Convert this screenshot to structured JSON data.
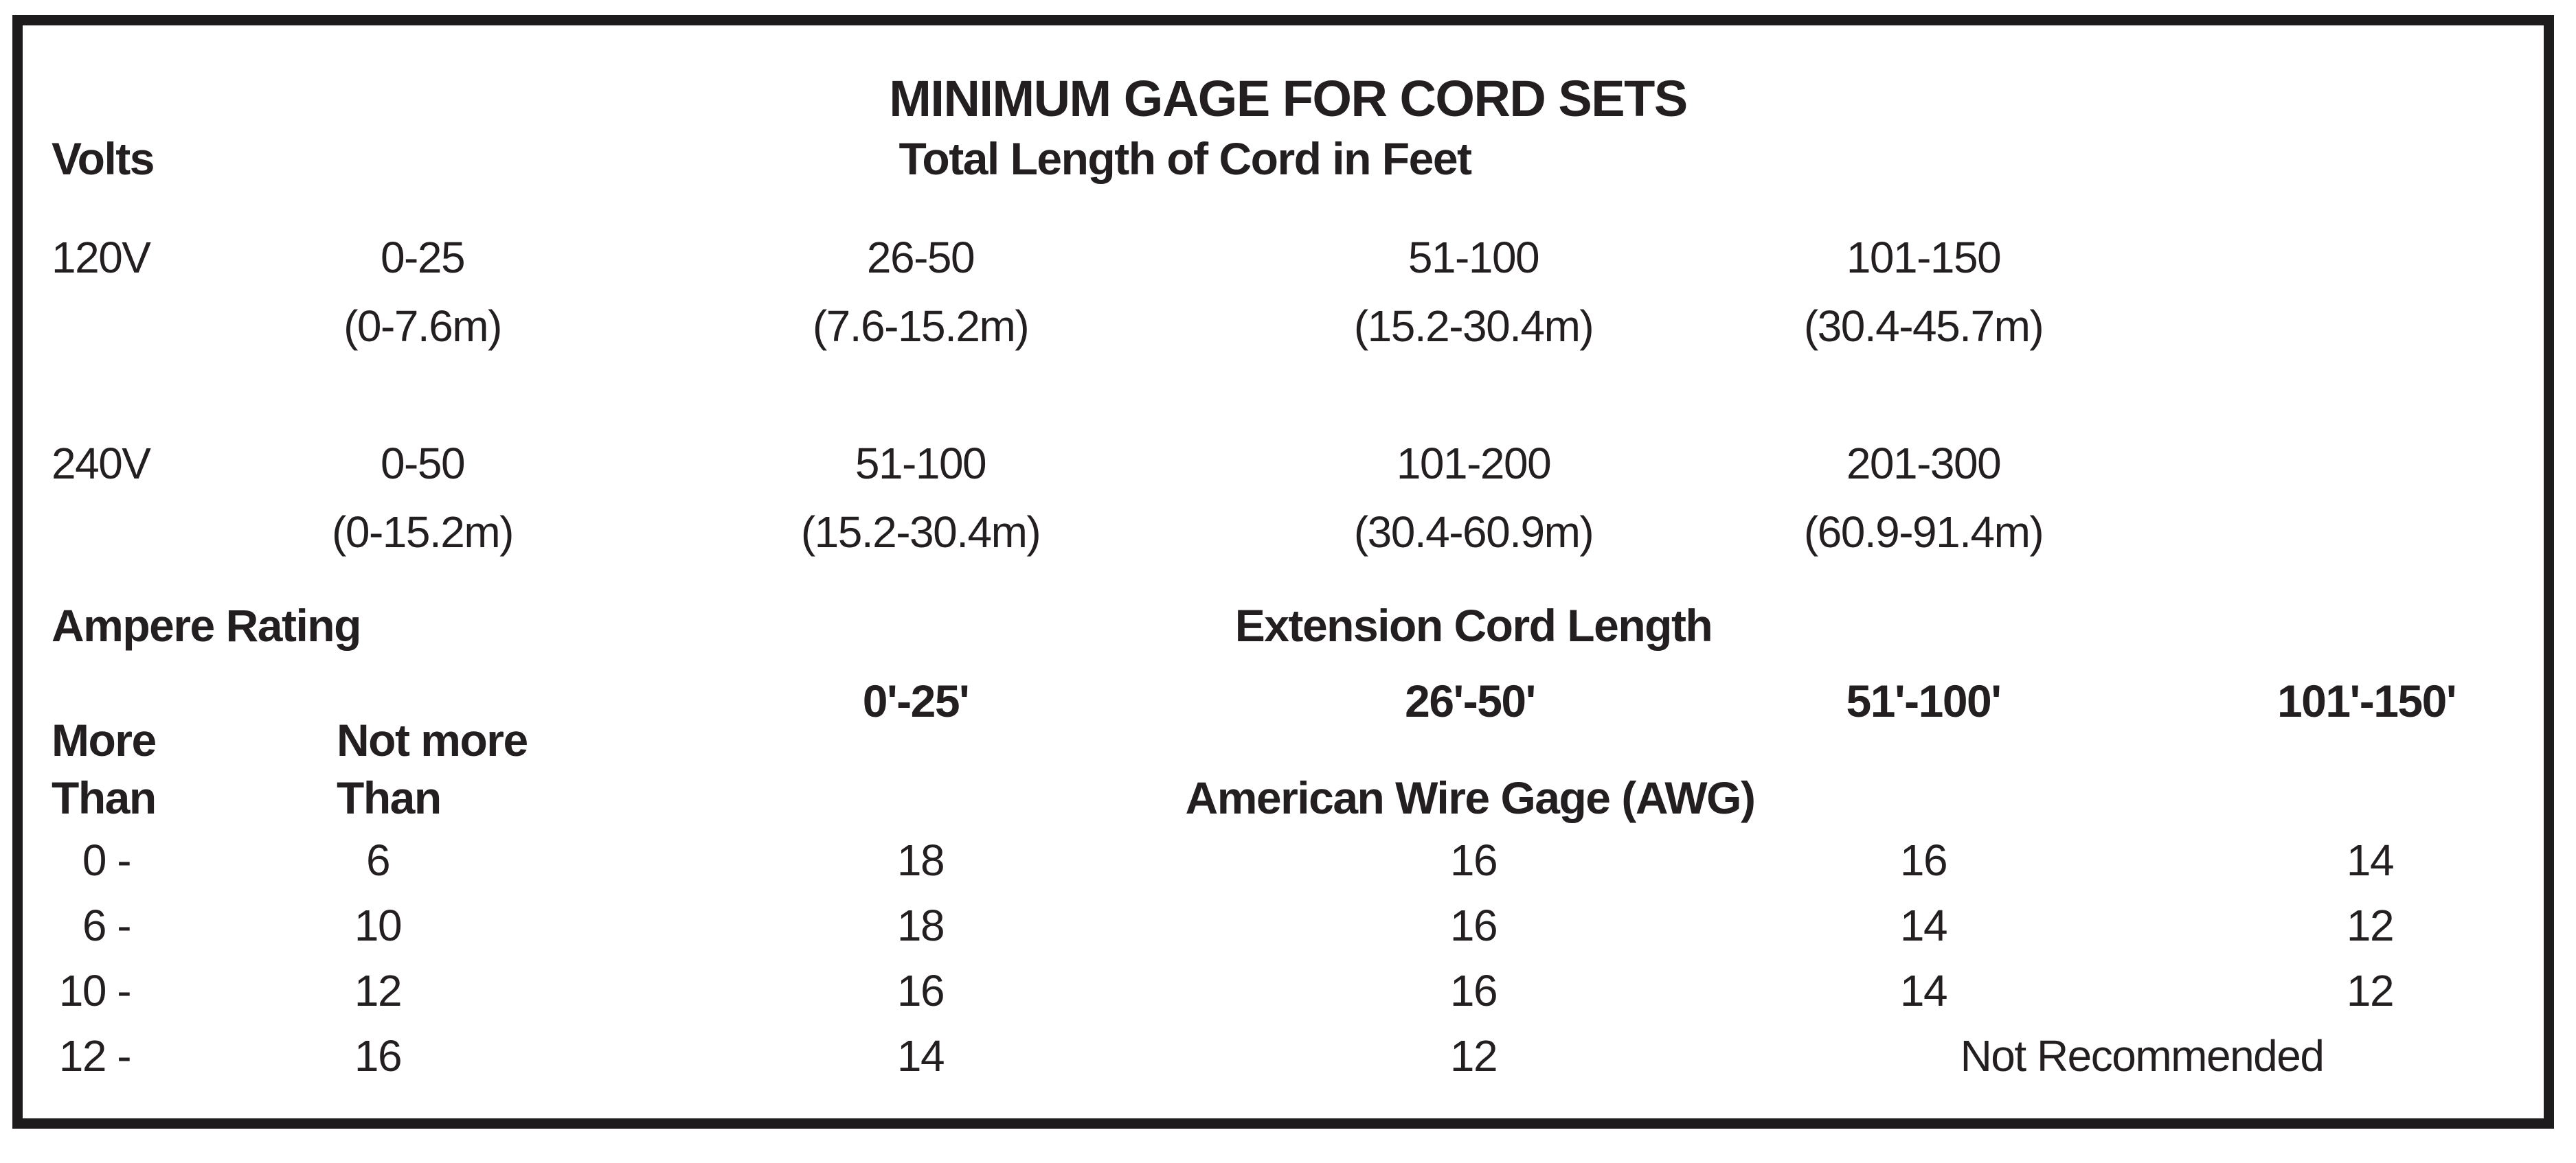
{
  "colors": {
    "ink": "#231f20",
    "background": "#ffffff"
  },
  "table": {
    "title": "MINIMUM GAGE FOR CORD SETS",
    "volts_label": "Volts",
    "length_header": "Total Length of Cord in Feet",
    "volt_rows": [
      {
        "volts": "120V",
        "cols": [
          {
            "feet": "0-25",
            "meters": "(0-7.6m)"
          },
          {
            "feet": "26-50",
            "meters": "(7.6-15.2m)"
          },
          {
            "feet": "51-100",
            "meters": "(15.2-30.4m)"
          },
          {
            "feet": "101-150",
            "meters": "(30.4-45.7m)"
          }
        ]
      },
      {
        "volts": "240V",
        "cols": [
          {
            "feet": "0-50",
            "meters": "(0-15.2m)"
          },
          {
            "feet": "51-100",
            "meters": "(15.2-30.4m)"
          },
          {
            "feet": "101-200",
            "meters": "(30.4-60.9m)"
          },
          {
            "feet": "201-300",
            "meters": "(60.9-91.4m)"
          }
        ]
      }
    ],
    "ampere_label": "Ampere Rating",
    "extension_header": "Extension Cord Length",
    "cord_lengths": [
      "0'-25'",
      "26'-50'",
      "51'-100'",
      "101'-150'"
    ],
    "more_than_label": [
      "More",
      "Than"
    ],
    "not_more_label": [
      "Not more",
      "Than"
    ],
    "awg_header": "American Wire Gage (AWG)",
    "awg_rows": [
      {
        "more": "0 -",
        "not_more": "6",
        "g1": "18",
        "g2": "16",
        "g3": "16",
        "g4": "14"
      },
      {
        "more": "6 -",
        "not_more": "10",
        "g1": "18",
        "g2": "16",
        "g3": "14",
        "g4": "12"
      },
      {
        "more": "10 -",
        "not_more": "12",
        "g1": "16",
        "g2": "16",
        "g3": "14",
        "g4": "12"
      },
      {
        "more": "12 -",
        "not_more": "16",
        "g1": "14",
        "g2": "12",
        "not_recommended": "Not Recommended"
      }
    ]
  }
}
